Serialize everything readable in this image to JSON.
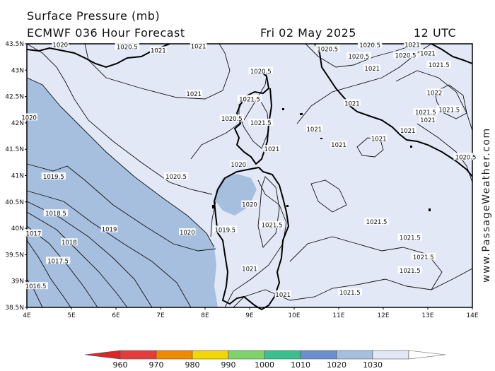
{
  "header": {
    "title": "Surface Pressure (mb)",
    "model": "ECMWF 036 Hour Forecast",
    "date": "Fri 02 May 2025",
    "time": "12 UTC"
  },
  "credit": "www.PassageWeather.com",
  "map": {
    "lon_range": [
      4,
      14
    ],
    "lat_range": [
      38.5,
      43.5
    ],
    "lon_labels": [
      "4E",
      "5E",
      "6E",
      "7E",
      "8E",
      "9E",
      "10E",
      "11E",
      "12E",
      "13E",
      "14E"
    ],
    "lat_labels": [
      "43.5N",
      "43N",
      "42.5N",
      "42N",
      "41.5N",
      "41N",
      "40.5N",
      "40N",
      "39.5N",
      "39N",
      "38.5N"
    ],
    "colors": {
      "p1020_1030": "#e2e8f5",
      "p1010_1020": "#a6bfdf",
      "land_border": "#000000",
      "isobar": "#111111"
    },
    "isobar_labels": [
      {
        "text": "1020",
        "lon": 4.75,
        "lat": 43.48
      },
      {
        "text": "1020.5",
        "lon": 6.25,
        "lat": 43.44
      },
      {
        "text": "1021",
        "lon": 6.95,
        "lat": 43.37
      },
      {
        "text": "1021",
        "lon": 7.85,
        "lat": 43.45
      },
      {
        "text": "1020.5",
        "lon": 10.75,
        "lat": 43.4
      },
      {
        "text": "1020.5",
        "lon": 11.7,
        "lat": 43.47
      },
      {
        "text": "1021",
        "lon": 12.65,
        "lat": 43.48
      },
      {
        "text": "1020.5",
        "lon": 11.45,
        "lat": 43.26
      },
      {
        "text": "1021",
        "lon": 11.75,
        "lat": 43.03
      },
      {
        "text": "1020.5",
        "lon": 12.5,
        "lat": 43.28
      },
      {
        "text": "1021",
        "lon": 13.0,
        "lat": 43.32
      },
      {
        "text": "1021.5",
        "lon": 13.25,
        "lat": 43.1
      },
      {
        "text": "1020.5",
        "lon": 9.25,
        "lat": 42.98
      },
      {
        "text": "1021",
        "lon": 7.75,
        "lat": 42.55
      },
      {
        "text": "1021.5",
        "lon": 9.0,
        "lat": 42.45
      },
      {
        "text": "1021",
        "lon": 11.3,
        "lat": 42.37
      },
      {
        "text": "1022",
        "lon": 13.15,
        "lat": 42.57
      },
      {
        "text": "1021.5",
        "lon": 13.48,
        "lat": 42.25
      },
      {
        "text": "1021.5",
        "lon": 12.95,
        "lat": 42.2
      },
      {
        "text": "1021",
        "lon": 13.0,
        "lat": 42.05
      },
      {
        "text": "1020.5",
        "lon": 8.6,
        "lat": 42.08
      },
      {
        "text": "1021.5",
        "lon": 9.25,
        "lat": 42.0
      },
      {
        "text": "1021",
        "lon": 10.45,
        "lat": 41.88
      },
      {
        "text": "1021",
        "lon": 12.55,
        "lat": 41.85
      },
      {
        "text": "1021",
        "lon": 11.9,
        "lat": 41.7
      },
      {
        "text": "1021",
        "lon": 11.0,
        "lat": 41.58
      },
      {
        "text": "1021",
        "lon": 9.5,
        "lat": 41.5
      },
      {
        "text": "1020.5",
        "lon": 13.85,
        "lat": 41.35
      },
      {
        "text": "1020",
        "lon": 8.75,
        "lat": 41.21
      },
      {
        "text": "1020.5",
        "lon": 7.35,
        "lat": 40.98
      },
      {
        "text": "1019.5",
        "lon": 4.6,
        "lat": 40.98
      },
      {
        "text": "1020",
        "lon": 9.0,
        "lat": 40.45
      },
      {
        "text": "1021.5",
        "lon": 9.5,
        "lat": 40.06
      },
      {
        "text": "1021.5",
        "lon": 11.85,
        "lat": 40.12
      },
      {
        "text": "1019.5",
        "lon": 8.45,
        "lat": 39.97
      },
      {
        "text": "1020",
        "lon": 7.6,
        "lat": 39.92
      },
      {
        "text": "1019",
        "lon": 5.85,
        "lat": 39.98
      },
      {
        "text": "1018.5",
        "lon": 4.65,
        "lat": 40.28
      },
      {
        "text": "1018",
        "lon": 4.95,
        "lat": 39.73
      },
      {
        "text": "1017.5",
        "lon": 4.7,
        "lat": 39.38
      },
      {
        "text": "1017",
        "lon": 4.15,
        "lat": 39.9
      },
      {
        "text": "1016.5",
        "lon": 4.2,
        "lat": 38.9
      },
      {
        "text": "1020",
        "lon": 4.05,
        "lat": 42.1
      },
      {
        "text": "1021.5",
        "lon": 12.6,
        "lat": 39.82
      },
      {
        "text": "1021.5",
        "lon": 12.9,
        "lat": 39.45
      },
      {
        "text": "1021.5",
        "lon": 12.6,
        "lat": 39.2
      },
      {
        "text": "1021",
        "lon": 9.0,
        "lat": 39.23
      },
      {
        "text": "1021",
        "lon": 9.75,
        "lat": 38.74
      },
      {
        "text": "1021.5",
        "lon": 11.25,
        "lat": 38.78
      }
    ]
  },
  "colorbar": {
    "labels": [
      "960",
      "970",
      "980",
      "990",
      "1000",
      "1010",
      "1020",
      "1030"
    ],
    "colors": [
      "#e63b3b",
      "#f08a00",
      "#f2d800",
      "#7fd36b",
      "#3cbf8e",
      "#6a8fcc",
      "#a6bfdf",
      "#e2e8f5"
    ],
    "start_color": "#d92626",
    "end_color": "#ffffff"
  }
}
